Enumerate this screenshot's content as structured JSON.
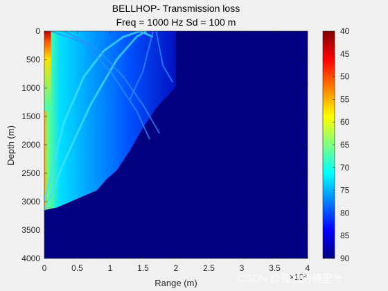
{
  "chart_data": {
    "type": "heatmap",
    "title": "BELLHOP- Transmission loss",
    "subtitle": "Freq = 1000 Hz    Sd = 100 m",
    "xlabel": "Range (m)",
    "ylabel": "Depth (m)",
    "x_exponent_label": "×10⁴",
    "xlim": [
      0,
      40000
    ],
    "ylim": [
      0,
      4000
    ],
    "y_reversed": true,
    "x_ticks": [
      0,
      5000,
      10000,
      15000,
      20000,
      25000,
      30000,
      35000,
      40000
    ],
    "x_tick_labels": [
      "0",
      "0.5",
      "1",
      "1.5",
      "2",
      "2.5",
      "3",
      "3.5",
      "4"
    ],
    "y_ticks": [
      0,
      500,
      1000,
      1500,
      2000,
      2500,
      3000,
      3500,
      4000
    ],
    "y_tick_labels": [
      "0",
      "500",
      "1000",
      "1500",
      "2000",
      "2500",
      "3000",
      "3500",
      "4000"
    ],
    "colorbar": {
      "min": 40,
      "max": 90,
      "ticks": [
        40,
        45,
        50,
        55,
        60,
        65,
        70,
        75,
        80,
        85,
        90
      ],
      "colormap": "jet",
      "reversed": true
    },
    "background_value": 90,
    "insonified_boundary": [
      [
        0,
        3150
      ],
      [
        2000,
        3100
      ],
      [
        5000,
        2950
      ],
      [
        8000,
        2800
      ],
      [
        9500,
        2600
      ],
      [
        11000,
        2450
      ],
      [
        13000,
        2100
      ],
      [
        15000,
        1700
      ],
      [
        17000,
        1350
      ],
      [
        19000,
        1100
      ],
      [
        20000,
        980
      ],
      [
        20000,
        0
      ]
    ],
    "caustic_arcs": [
      {
        "x": [
          0,
          3000,
          7000,
          11000,
          14000,
          15500
        ],
        "y": [
          3150,
          2300,
          1300,
          500,
          100,
          0
        ]
      },
      {
        "x": [
          0,
          3000,
          6000,
          9000,
          12000,
          14500,
          16500
        ],
        "y": [
          3000,
          1600,
          800,
          350,
          100,
          0,
          100
        ]
      },
      {
        "x": [
          3000,
          8000,
          12000,
          15000,
          17500
        ],
        "y": [
          0,
          300,
          800,
          1300,
          1800
        ]
      },
      {
        "x": [
          1000,
          6000,
          10000,
          14000,
          16000
        ],
        "y": [
          0,
          200,
          700,
          1400,
          1900
        ]
      },
      {
        "x": [
          13000,
          15000,
          16500
        ],
        "y": [
          1200,
          700,
          0
        ]
      },
      {
        "x": [
          17000,
          18000,
          19500
        ],
        "y": [
          0,
          600,
          900
        ]
      }
    ],
    "grid": false
  },
  "watermark": "CSDN @孤独的傅里叶"
}
